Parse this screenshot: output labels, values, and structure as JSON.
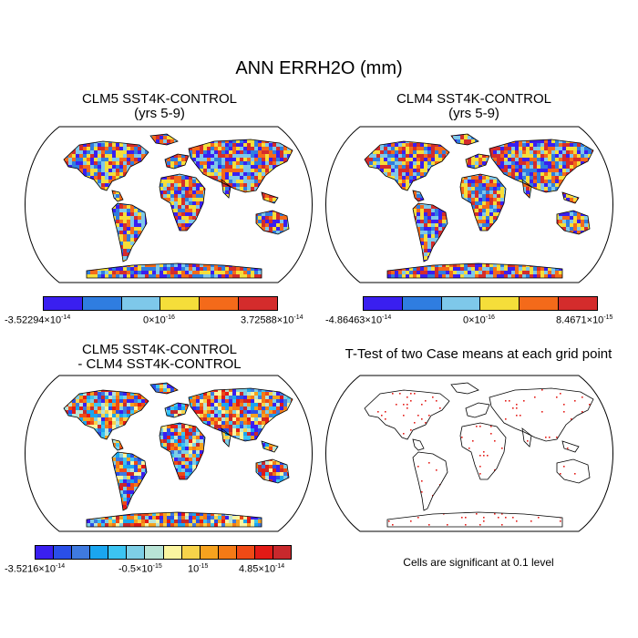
{
  "title": "ANN ERRH2O (mm)",
  "panels": [
    {
      "title_line1": "CLM5 SST4K-CONTROL",
      "title_line2": "(yrs 5-9)",
      "colorbar": {
        "colors": [
          "#3a1ff0",
          "#2f7de0",
          "#7ec8ea",
          "#f5de3a",
          "#f46a1a",
          "#d42c2c"
        ],
        "labels": [
          {
            "mant": "-3.52294×10",
            "exp": "-14"
          },
          {
            "mant": "0×10",
            "exp": "-16"
          },
          {
            "mant": "3.72588×10",
            "exp": "-14"
          }
        ]
      }
    },
    {
      "title_line1": "CLM4 SST4K-CONTROL",
      "title_line2": "(yrs 5-9)",
      "colorbar": {
        "colors": [
          "#3a1ff0",
          "#2f7de0",
          "#7ec8ea",
          "#f5de3a",
          "#f46a1a",
          "#d42c2c"
        ],
        "labels": [
          {
            "mant": "-4.86463×10",
            "exp": "-14"
          },
          {
            "mant": "0×10",
            "exp": "-16"
          },
          {
            "mant": "8.4671×10",
            "exp": "-15"
          }
        ]
      }
    },
    {
      "title_line1": "CLM5 SST4K-CONTROL",
      "title_line2": "- CLM4 SST4K-CONTROL",
      "colorbar": {
        "colors": [
          "#3a1ff0",
          "#2a4fe8",
          "#3f7ae0",
          "#1aa6f0",
          "#3cc4f2",
          "#7ecfe6",
          "#b9e4d6",
          "#fbf5a0",
          "#f7d34a",
          "#f6a21e",
          "#f47a16",
          "#ef4a16",
          "#e21a16",
          "#c8282c"
        ],
        "labels": [
          {
            "mant": "-3.5216×10",
            "exp": "-14"
          },
          {
            "mant": "-0.5×10",
            "exp": "-15"
          },
          {
            "mant": "10",
            "exp": "-15"
          },
          {
            "mant": "4.85×10",
            "exp": "-14"
          }
        ]
      }
    },
    {
      "title_line1": "T-Test of two Case means at each grid point",
      "title_line2": "",
      "note": "Cells are significant at 0.1 level"
    }
  ]
}
